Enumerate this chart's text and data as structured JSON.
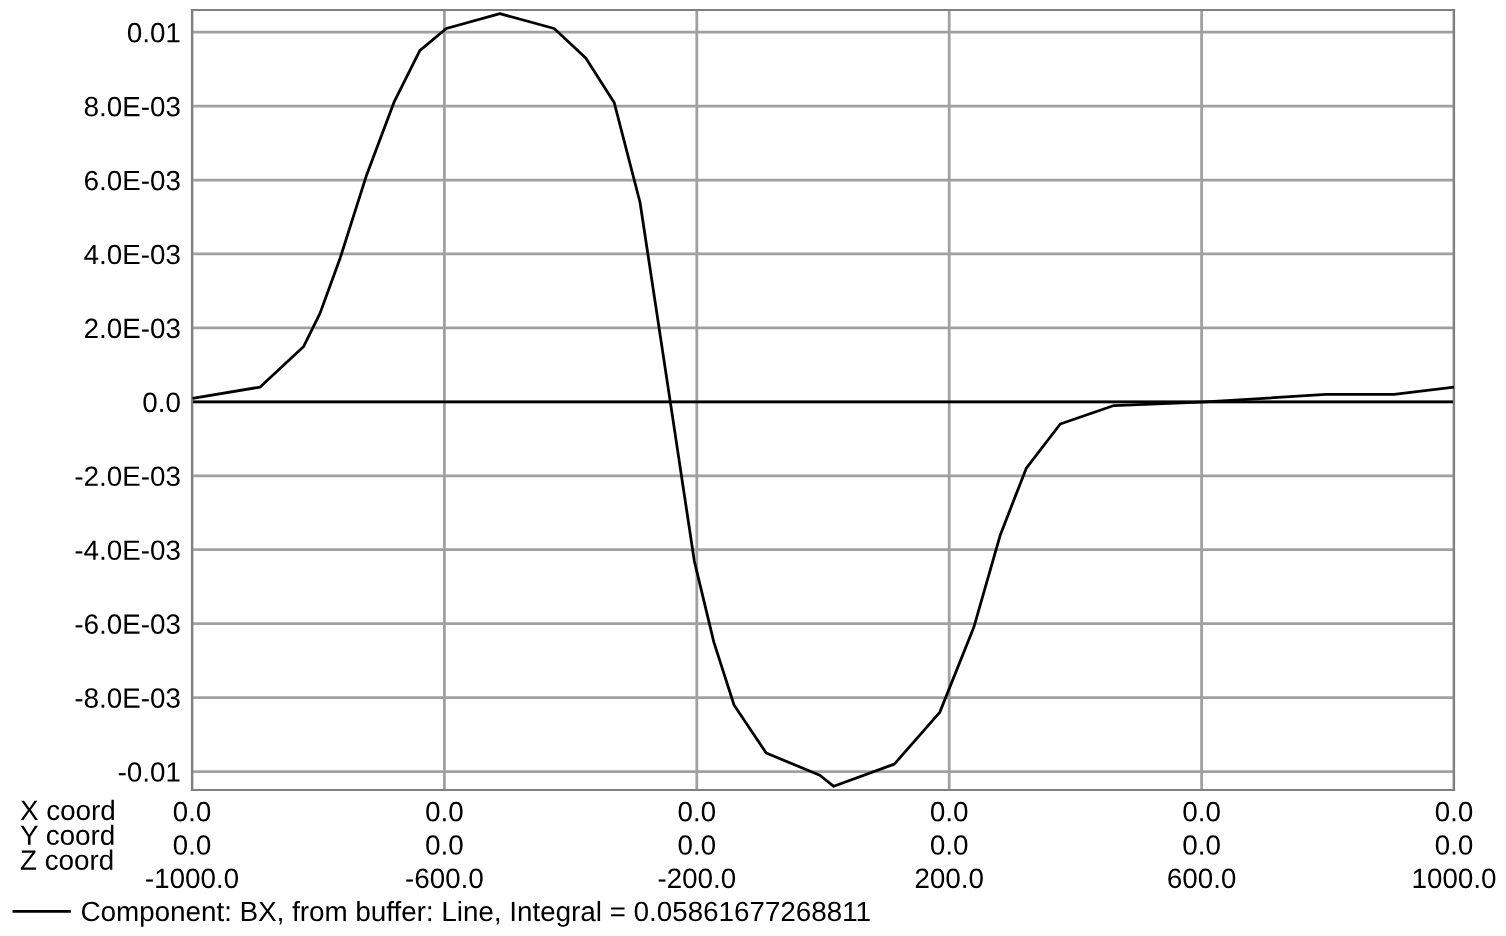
{
  "chart_data": {
    "type": "line",
    "xlabel": "X coord\nY coord\nZ coord",
    "x": [
      -997,
      -892,
      -823,
      -797,
      -765,
      -724,
      -680,
      -639,
      -597,
      -512,
      -426,
      -376,
      -331,
      -290,
      -242,
      -204,
      -173,
      -141,
      -90,
      -5,
      17,
      113,
      185,
      239,
      281,
      322,
      376,
      461,
      607,
      797,
      905,
      1000
    ],
    "series": [
      {
        "name": "Component: BX, from buffer: Line, Integral = 0.05861677268811",
        "color": "#000000",
        "values": [
          0.0001,
          0.0004,
          0.0015,
          0.0024,
          0.0039,
          0.0061,
          0.0081,
          0.0095,
          0.0101,
          0.0105,
          0.0101,
          0.0093,
          0.0081,
          0.0054,
          0.0,
          -0.0043,
          -0.0065,
          -0.0082,
          -0.0095,
          -0.0101,
          -0.0104,
          -0.0098,
          -0.0084,
          -0.0061,
          -0.0036,
          -0.0018,
          -0.0006,
          -0.0001,
          0.0,
          0.0002,
          0.0002,
          0.0004
        ]
      }
    ],
    "xlim": [
      -1000,
      1000
    ],
    "xticks": [
      {
        "value": -1000,
        "label": "-1000.0"
      },
      {
        "value": -600,
        "label": "-600.0"
      },
      {
        "value": -200,
        "label": "-200.0"
      },
      {
        "value": 200,
        "label": "200.0"
      },
      {
        "value": 600,
        "label": "600.0"
      },
      {
        "value": 1000,
        "label": "1000.0"
      }
    ],
    "annotations": [
      "0.0",
      "0.0",
      "0.0",
      "0.0",
      "0.0",
      "0.0",
      "0.0",
      "0.0",
      "0.0",
      "0.0",
      "0.0",
      "0.0"
    ],
    "ylim": [
      -0.0105,
      0.0106
    ],
    "yticks": [
      {
        "value": 0.01,
        "label": "0.01"
      },
      {
        "value": 0.008,
        "label": "8.0E-03"
      },
      {
        "value": 0.006,
        "label": "6.0E-03"
      },
      {
        "value": 0.004,
        "label": "4.0E-03"
      },
      {
        "value": 0.002,
        "label": "2.0E-03"
      },
      {
        "value": 0,
        "label": "0.0"
      },
      {
        "value": -0.002,
        "label": "-2.0E-03"
      },
      {
        "value": -0.004,
        "label": "-4.0E-03"
      },
      {
        "value": -0.006,
        "label": "-6.0E-03"
      },
      {
        "value": -0.008,
        "label": "-8.0E-03"
      },
      {
        "value": -0.01,
        "label": "-0.01"
      }
    ],
    "ref_lines": [
      {
        "axis": "y",
        "value": 0,
        "color": "#000000"
      }
    ],
    "grid": true,
    "legend": "bottom left",
    "marker": "none",
    "line_style": "solid"
  }
}
